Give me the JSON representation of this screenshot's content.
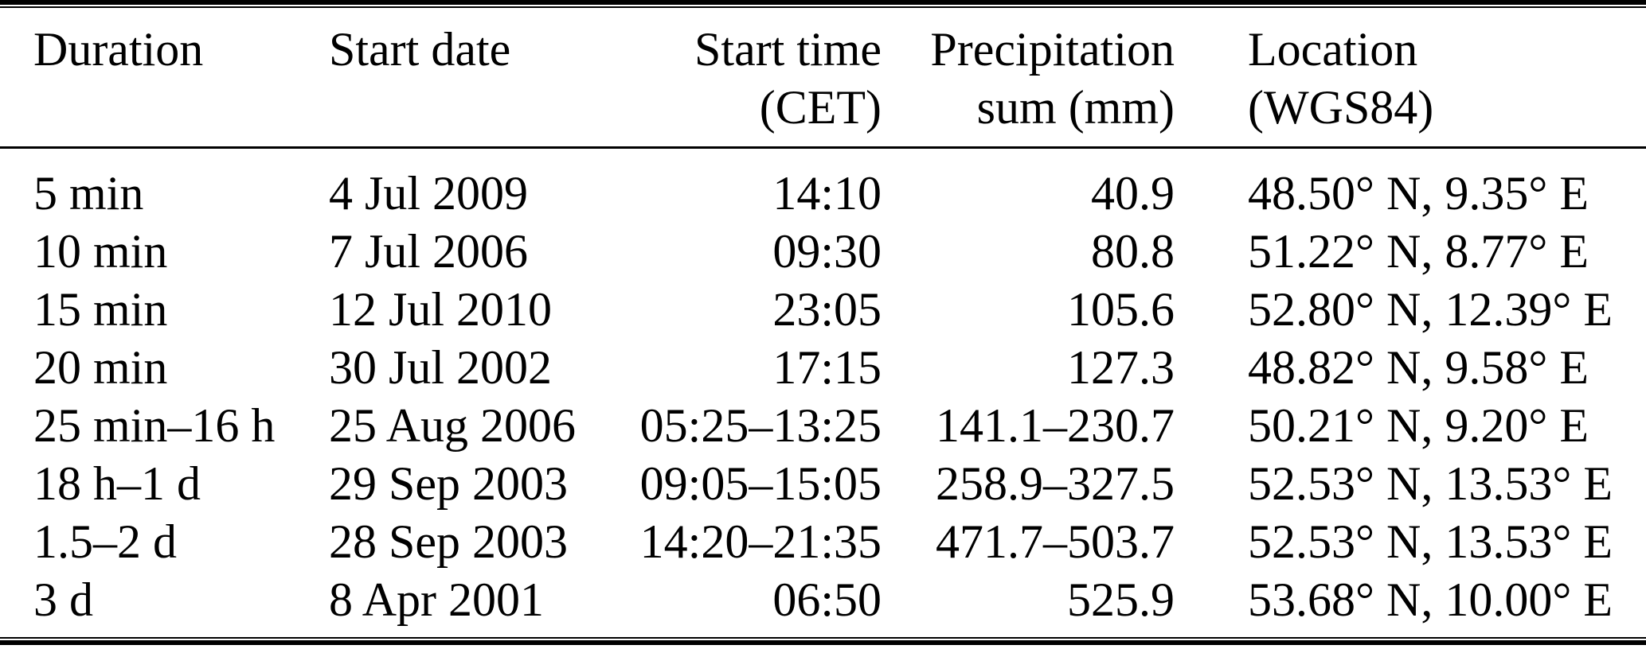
{
  "table": {
    "title": "extreme-precipitation-events",
    "columns": [
      {
        "id": "duration",
        "line1": "Duration",
        "line2": "",
        "align": "left"
      },
      {
        "id": "start-date",
        "line1": "Start date",
        "line2": "",
        "align": "left"
      },
      {
        "id": "start-time",
        "line1": "Start time",
        "line2": "(CET)",
        "align": "right"
      },
      {
        "id": "precipitation",
        "line1": "Precipitation",
        "line2": "sum (mm)",
        "align": "right"
      },
      {
        "id": "location",
        "line1": "Location",
        "line2": "(WGS84)",
        "align": "left"
      }
    ],
    "rows": [
      {
        "duration": "5 min",
        "start_date": "4 Jul 2009",
        "start_time": "14:10",
        "precipitation_sum": "40.9",
        "location": "48.50° N, 9.35° E"
      },
      {
        "duration": "10 min",
        "start_date": "7 Jul 2006",
        "start_time": "09:30",
        "precipitation_sum": "80.8",
        "location": "51.22° N, 8.77° E"
      },
      {
        "duration": "15 min",
        "start_date": "12 Jul 2010",
        "start_time": "23:05",
        "precipitation_sum": "105.6",
        "location": "52.80° N, 12.39° E"
      },
      {
        "duration": "20 min",
        "start_date": "30 Jul 2002",
        "start_time": "17:15",
        "precipitation_sum": "127.3",
        "location": "48.82° N, 9.58° E"
      },
      {
        "duration": "25 min–16 h",
        "start_date": "25 Aug 2006",
        "start_time": "05:25–13:25",
        "precipitation_sum": "141.1–230.7",
        "location": "50.21° N, 9.20° E"
      },
      {
        "duration": "18 h–1 d",
        "start_date": "29 Sep 2003",
        "start_time": "09:05–15:05",
        "precipitation_sum": "258.9–327.5",
        "location": "52.53° N, 13.53° E"
      },
      {
        "duration": "1.5–2 d",
        "start_date": "28 Sep 2003",
        "start_time": "14:20–21:35",
        "precipitation_sum": "471.7–503.7",
        "location": "52.53° N, 13.53° E"
      },
      {
        "duration": "3 d",
        "start_date": "8 Apr 2001",
        "start_time": "06:50",
        "precipitation_sum": "525.9",
        "location": "53.68° N, 10.00° E"
      }
    ],
    "colors": {
      "text": "#000000",
      "background": "#ffffff",
      "rule": "#000000"
    }
  }
}
